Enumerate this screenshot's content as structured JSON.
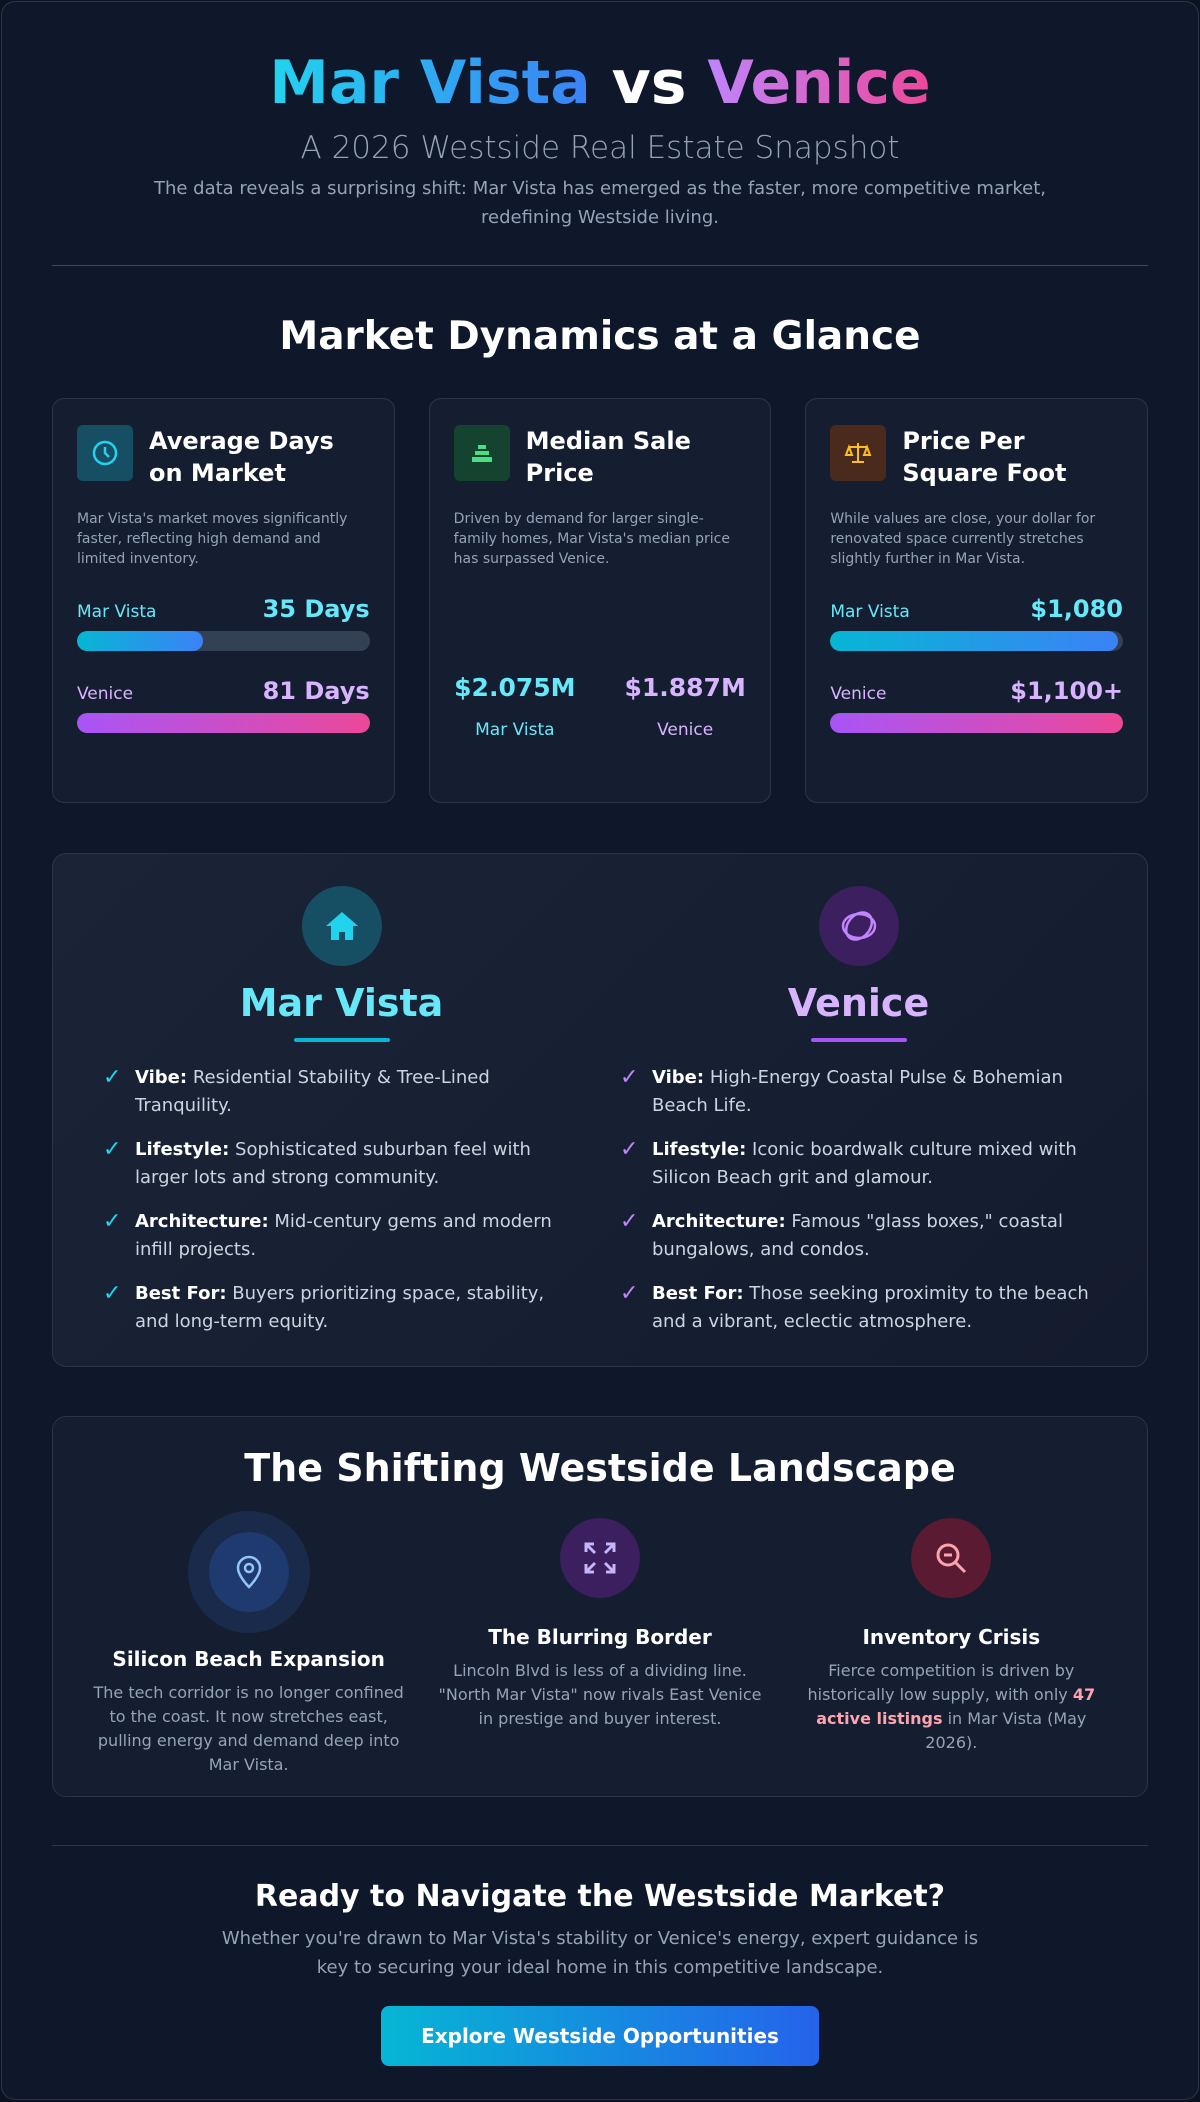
{
  "header": {
    "title": {
      "left": "Mar Vista",
      "middle": "vs",
      "right": "Venice"
    },
    "subtitle": "A 2026 Westside Real Estate Snapshot",
    "intro": "The data reveals a surprising shift: Mar Vista has emerged as the faster, more competitive market, redefining Westside living."
  },
  "dynamics": {
    "heading": "Market Dynamics at a Glance",
    "cards": [
      {
        "title": "Average Days on Market",
        "description": "Mar Vista's market moves significantly faster, reflecting high demand and limited inventory.",
        "rows": [
          {
            "name": "Mar Vista",
            "value": 35,
            "label": "35 Days"
          },
          {
            "name": "Venice",
            "value": 81,
            "label": "81 Days"
          }
        ]
      },
      {
        "title": "Median Sale Price",
        "description": "Driven by demand for larger single-family homes, Mar Vista's median price has surpassed Venice.",
        "stats": [
          {
            "price": "$2.075M",
            "name": "Mar Vista"
          },
          {
            "price": "$1.887M",
            "name": "Venice"
          }
        ]
      },
      {
        "title": "Price Per Square Foot",
        "description": "While values are close, your dollar for renovated space currently stretches slightly further in Mar Vista.",
        "rows": [
          {
            "name": "Mar Vista",
            "value": 1080,
            "label": "$1,080"
          },
          {
            "name": "Venice",
            "value": 1100,
            "label": "$1,100+"
          }
        ]
      }
    ]
  },
  "comparison": [
    {
      "name": "Mar Vista",
      "items": [
        {
          "label": "Vibe:",
          "text": "Residential Stability & Tree-Lined Tranquility."
        },
        {
          "label": "Lifestyle:",
          "text": "Sophisticated suburban feel with larger lots and strong community."
        },
        {
          "label": "Architecture:",
          "text": "Mid-century gems and modern infill projects."
        },
        {
          "label": "Best For:",
          "text": "Buyers prioritizing space, stability, and long-term equity."
        }
      ]
    },
    {
      "name": "Venice",
      "items": [
        {
          "label": "Vibe:",
          "text": "High-Energy Coastal Pulse & Bohemian Beach Life."
        },
        {
          "label": "Lifestyle:",
          "text": "Iconic boardwalk culture mixed with Silicon Beach grit and glamour."
        },
        {
          "label": "Architecture:",
          "text": "Famous \"glass boxes,\" coastal bungalows, and condos."
        },
        {
          "label": "Best For:",
          "text": "Those seeking proximity to the beach and a vibrant, eclectic atmosphere."
        }
      ]
    }
  ],
  "landscape": {
    "heading": "The Shifting Westside Landscape",
    "items": [
      {
        "title": "Silicon Beach Expansion",
        "description": "The tech corridor is no longer confined to the coast. It now stretches east, pulling energy and demand deep into Mar Vista."
      },
      {
        "title": "The Blurring Border",
        "description": "Lincoln Blvd is less of a dividing line. \"North Mar Vista\" now rivals East Venice in prestige and buyer interest."
      },
      {
        "title": "Inventory Crisis",
        "description": {
          "before": "Fierce competition is driven by historically low supply, with only",
          "highlight": "47 active listings",
          "after": "in Mar Vista (May 2026)."
        }
      }
    ]
  },
  "cta": {
    "heading": "Ready to Navigate the Westside Market?",
    "text": "Whether you're drawn to Mar Vista's stability or Venice's energy, expert guidance is key to securing your ideal home in this competitive landscape.",
    "button": "Explore Westside Opportunities"
  }
}
